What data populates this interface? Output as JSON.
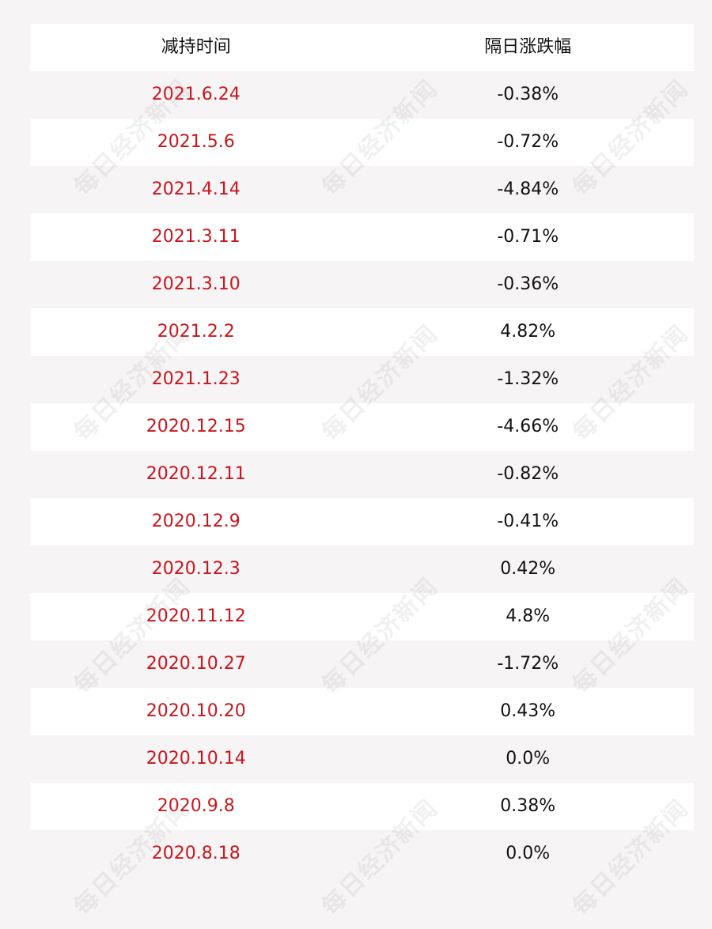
{
  "table": {
    "headers": {
      "date": "减持时间",
      "change": "隔日涨跌幅"
    },
    "rows": [
      {
        "date": "2021.6.24",
        "change": "-0.38%"
      },
      {
        "date": "2021.5.6",
        "change": "-0.72%"
      },
      {
        "date": "2021.4.14",
        "change": "-4.84%"
      },
      {
        "date": "2021.3.11",
        "change": "-0.71%"
      },
      {
        "date": "2021.3.10",
        "change": "-0.36%"
      },
      {
        "date": "2021.2.2",
        "change": "4.82%"
      },
      {
        "date": "2021.1.23",
        "change": "-1.32%"
      },
      {
        "date": "2020.12.15",
        "change": "-4.66%"
      },
      {
        "date": "2020.12.11",
        "change": "-0.82%"
      },
      {
        "date": "2020.12.9",
        "change": "-0.41%"
      },
      {
        "date": "2020.12.3",
        "change": "0.42%"
      },
      {
        "date": "2020.11.12",
        "change": "4.8%"
      },
      {
        "date": "2020.10.27",
        "change": "-1.72%"
      },
      {
        "date": "2020.10.20",
        "change": "0.43%"
      },
      {
        "date": "2020.10.14",
        "change": "0.0%"
      },
      {
        "date": "2020.9.8",
        "change": "0.38%"
      },
      {
        "date": "2020.8.18",
        "change": "0.0%"
      }
    ]
  },
  "watermark": {
    "text": "每日经济新闻"
  },
  "colors": {
    "date_text": "#c8161d",
    "value_text": "#111111",
    "row_white": "#ffffff",
    "row_tint": "#f7f4f5"
  }
}
